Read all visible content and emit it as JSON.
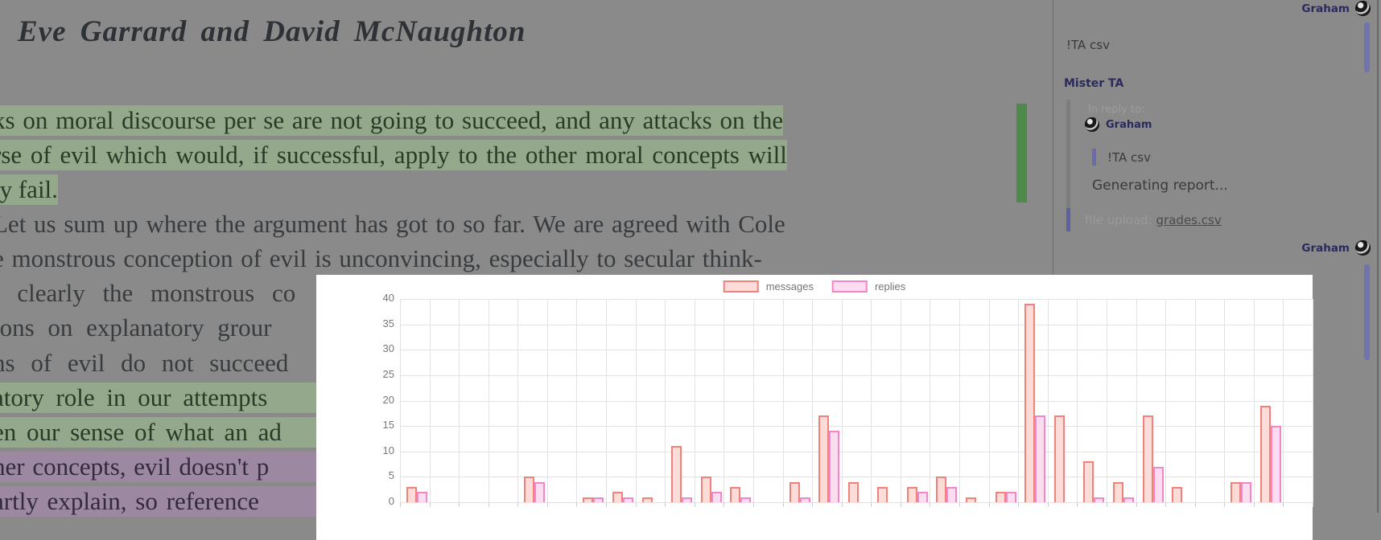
{
  "document": {
    "title": "Eve Garrard and David McNaughton",
    "lines": [
      {
        "text": "ks on moral discourse per se are not going to succeed, and any attacks on the",
        "highlight": "green"
      },
      {
        "text": "rse of evil which would, if successful, apply to the other moral concepts will",
        "highlight": "green"
      },
      {
        "text": "ly fail.",
        "highlight": "green"
      },
      {
        "text": "Let us sum up where the argument has got to so far. We are agreed with Cole",
        "highlight": "none"
      },
      {
        "text": "e monstrous conception of evil is unconvincing, especially to secular think-",
        "highlight": "none"
      },
      {
        "text": "t clearly the monstrous co",
        "highlight": "none"
      },
      {
        "text": "ions on explanatory grour",
        "highlight": "none"
      },
      {
        "text": "ns of evil do not succeed",
        "highlight": "none"
      },
      {
        "text": "atory role in our attempts",
        "highlight": "green"
      },
      {
        "text": "en our sense of what an ad",
        "highlight": "green"
      },
      {
        "text": "her concepts, evil doesn't p",
        "highlight": "purple"
      },
      {
        "text": "artly explain, so reference",
        "highlight": "purple"
      }
    ],
    "highlight_colors": {
      "green": "#94a98c",
      "purple": "#9c88a0"
    }
  },
  "chat": {
    "user_top": "Graham",
    "message_top": "!TA csv",
    "bot_name": "Mister TA",
    "reply_context_label": "In reply to:",
    "reply_user": "Graham",
    "reply_quote": "!TA csv",
    "bot_message": "Generating report...",
    "file_upload_label": "file upload:",
    "file_link": "grades.csv",
    "user_bottom": "Graham"
  },
  "chart_data": {
    "type": "bar",
    "title": "",
    "xlabel": "",
    "ylabel": "",
    "ylim": [
      0,
      40
    ],
    "yticks": [
      0,
      5,
      10,
      15,
      20,
      25,
      30,
      35,
      40
    ],
    "grid": true,
    "legend_position": "top-center",
    "x_labels_visible": false,
    "categories_count": 31,
    "series": [
      {
        "name": "messages",
        "values": [
          3,
          0,
          0,
          0,
          5,
          0,
          1,
          2,
          1,
          11,
          5,
          3,
          0,
          4,
          17,
          4,
          3,
          3,
          5,
          1,
          2,
          39,
          17,
          8,
          4,
          17,
          3,
          0,
          4,
          19,
          0
        ]
      },
      {
        "name": "replies",
        "values": [
          2,
          0,
          0,
          0,
          4,
          0,
          1,
          1,
          0,
          1,
          2,
          1,
          0,
          1,
          14,
          0,
          0,
          2,
          3,
          0,
          2,
          17,
          0,
          1,
          1,
          7,
          0,
          0,
          4,
          15,
          0
        ]
      }
    ],
    "colors": {
      "messages_fill": "#fcdcd9",
      "messages_border": "#f0827a",
      "replies_fill": "#fbdcf1",
      "replies_border": "#f486c5",
      "grid": "#e3e3e3",
      "axis_labels": "#777777"
    }
  }
}
